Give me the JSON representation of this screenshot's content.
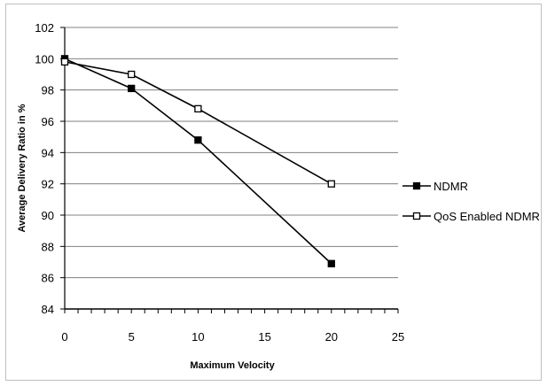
{
  "chart_data": {
    "type": "line",
    "title": "",
    "xlabel": "Maximum Velocity",
    "ylabel": "Average Delivery Ratio in %",
    "xlim": [
      0,
      25
    ],
    "ylim": [
      84,
      102
    ],
    "x_ticks": [
      0,
      5,
      10,
      15,
      20,
      25
    ],
    "y_ticks": [
      84,
      86,
      88,
      90,
      92,
      94,
      96,
      98,
      100,
      102
    ],
    "grid": "horizontal",
    "legend_position": "right",
    "series": [
      {
        "name": "NDMR",
        "marker": "filled-square",
        "color": "#000000",
        "x": [
          0,
          5,
          10,
          20
        ],
        "y": [
          100,
          98.1,
          94.8,
          86.9
        ]
      },
      {
        "name": "QoS Enabled NDMR",
        "marker": "open-square",
        "color": "#000000",
        "x": [
          0,
          5,
          10,
          20
        ],
        "y": [
          99.8,
          99,
          96.8,
          92
        ]
      }
    ]
  }
}
